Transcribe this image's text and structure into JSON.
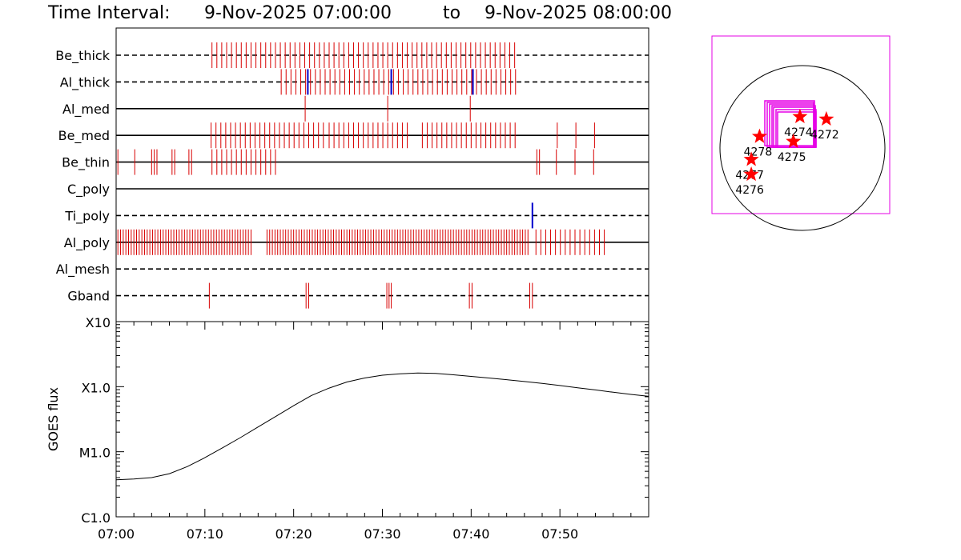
{
  "title": {
    "prefix": "Time Interval:",
    "start": "9-Nov-2025 07:00:00",
    "connector": "to",
    "end": "9-Nov-2025 08:00:00"
  },
  "colors": {
    "event_red": "#d80000",
    "event_blue": "#0000cc",
    "box_magenta": "#e600e6",
    "star_red": "#ff0000",
    "axes": "#000000"
  },
  "chart_data": [
    {
      "type": "timeline",
      "x_unit": "minutes after 07:00",
      "xlim": [
        0,
        60
      ],
      "rows": [
        {
          "label": "Be_thick",
          "style": "dashed",
          "red": [
            {
              "from": 10.8,
              "to": 45.0,
              "step": 0.55
            }
          ],
          "blue": []
        },
        {
          "label": "Al_thick",
          "style": "dashed",
          "red": [
            {
              "from": 18.6,
              "to": 45.0,
              "step": 0.55
            }
          ],
          "blue": [
            21.6,
            31.0,
            40.2
          ]
        },
        {
          "label": "Al_med",
          "style": "solid",
          "red": [
            21.3,
            30.6,
            39.9
          ],
          "blue": []
        },
        {
          "label": "Be_med",
          "style": "solid",
          "red": [
            {
              "from": 10.7,
              "to": 23.4,
              "step": 0.55
            },
            {
              "from": 24.0,
              "to": 33.0,
              "step": 0.55
            },
            {
              "from": 34.5,
              "to": 45.0,
              "step": 0.55
            },
            49.7,
            51.8,
            53.9
          ],
          "blue": []
        },
        {
          "label": "Be_thin",
          "style": "solid",
          "red": [
            0.2,
            2.1,
            4.0,
            4.3,
            4.6,
            6.3,
            6.6,
            8.2,
            8.5,
            {
              "from": 10.8,
              "to": 18.2,
              "step": 0.55
            },
            47.4,
            47.7,
            49.6,
            51.7,
            53.8
          ],
          "blue": []
        },
        {
          "label": "C_poly",
          "style": "solid",
          "red": [],
          "blue": []
        },
        {
          "label": "Ti_poly",
          "style": "dashed",
          "red": [],
          "blue": [
            46.9
          ]
        },
        {
          "label": "Al_poly",
          "style": "solid",
          "red": [
            {
              "from": 0.2,
              "to": 15.4,
              "step": 0.3
            },
            {
              "from": 17.0,
              "to": 46.4,
              "step": 0.3
            },
            {
              "from": 47.3,
              "to": 55.5,
              "step": 0.55
            }
          ],
          "blue": []
        },
        {
          "label": "Al_mesh",
          "style": "dashed",
          "red": [],
          "blue": []
        },
        {
          "label": "Gband",
          "style": "dashed",
          "red": [
            10.5,
            21.4,
            21.7,
            30.5,
            30.75,
            31.0,
            39.8,
            40.1,
            46.6,
            46.9
          ],
          "blue": []
        }
      ]
    },
    {
      "type": "line",
      "ylabel": "GOES flux",
      "y_scale": "log",
      "y_ticks": [
        {
          "label": "X10",
          "value": 0.001
        },
        {
          "label": "X1.0",
          "value": 0.0001
        },
        {
          "label": "M1.0",
          "value": 1e-05
        },
        {
          "label": "C1.0",
          "value": 1e-06
        }
      ],
      "ylim": [
        1e-06,
        0.001
      ],
      "x_ticks": [
        "07:00",
        "07:10",
        "07:20",
        "07:30",
        "07:40",
        "07:50"
      ],
      "x_tick_minutes": [
        0,
        10,
        20,
        30,
        40,
        50
      ],
      "xlim": [
        0,
        60
      ],
      "series": [
        {
          "x": [
            0,
            2,
            4,
            6,
            8,
            10,
            12,
            14,
            16,
            18,
            20,
            22,
            24,
            26,
            28,
            30,
            32,
            34,
            36,
            38,
            40,
            42,
            44,
            46,
            48,
            50,
            52,
            54,
            56,
            58,
            60
          ],
          "y": [
            3.7e-06,
            3.8e-06,
            4e-06,
            4.6e-06,
            5.9e-06,
            8.1e-06,
            1.15e-05,
            1.65e-05,
            2.4e-05,
            3.5e-05,
            5.1e-05,
            7.3e-05,
            9.5e-05,
            0.000118,
            0.000136,
            0.00015,
            0.000158,
            0.000162,
            0.00016,
            0.000152,
            0.000144,
            0.000136,
            0.000128,
            0.00012,
            0.000112,
            0.000104,
            9.6e-05,
            8.9e-05,
            8.2e-05,
            7.6e-05,
            7.1e-05
          ]
        }
      ]
    },
    {
      "type": "scatter",
      "note_units": "fraction of solar disk radius, origin at disk centre, y up",
      "points": [
        {
          "label": "4272",
          "x": 0.29,
          "y": 0.35
        },
        {
          "label": "4274",
          "x": -0.03,
          "y": 0.38
        },
        {
          "label": "4275",
          "x": -0.11,
          "y": 0.08
        },
        {
          "label": "4278",
          "x": -0.52,
          "y": 0.14
        },
        {
          "label": "4277",
          "x": -0.62,
          "y": -0.14
        },
        {
          "label": "4276",
          "x": -0.62,
          "y": -0.32
        }
      ]
    }
  ]
}
